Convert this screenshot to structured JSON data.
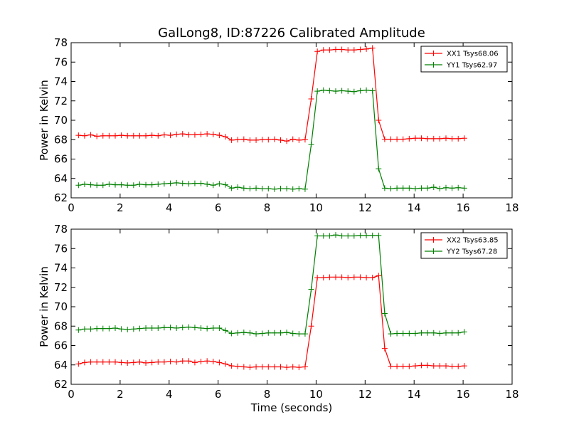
{
  "figure": {
    "title": "GalLong8, ID:87226 Calibrated Amplitude"
  },
  "colors": {
    "xx": "#ff0000",
    "yy": "#008000",
    "axes": "#000000",
    "background": "#ffffff"
  },
  "chart_data": [
    {
      "type": "line",
      "title": "GalLong8, ID:87226 Calibrated Amplitude",
      "xlabel": "",
      "ylabel": "Power in Kelvin",
      "xlim": [
        0,
        18
      ],
      "ylim": [
        62,
        78
      ],
      "xticks": [
        "0",
        "2",
        "4",
        "6",
        "8",
        "10",
        "12",
        "14",
        "16",
        "18"
      ],
      "yticks": [
        "62",
        "64",
        "66",
        "68",
        "70",
        "72",
        "74",
        "76",
        "78"
      ],
      "grid": false,
      "legend_position": "top-right",
      "x": [
        0.3,
        0.55,
        0.8,
        1.05,
        1.3,
        1.55,
        1.8,
        2.05,
        2.3,
        2.55,
        2.8,
        3.05,
        3.3,
        3.55,
        3.8,
        4.05,
        4.3,
        4.55,
        4.8,
        5.05,
        5.3,
        5.55,
        5.8,
        6.05,
        6.3,
        6.55,
        6.8,
        7.05,
        7.3,
        7.55,
        7.8,
        8.05,
        8.3,
        8.55,
        8.8,
        9.05,
        9.3,
        9.55,
        9.8,
        10.05,
        10.3,
        10.55,
        10.8,
        11.05,
        11.3,
        11.55,
        11.8,
        12.05,
        12.3,
        12.55,
        12.8,
        13.05,
        13.3,
        13.55,
        13.8,
        14.05,
        14.3,
        14.55,
        14.8,
        15.05,
        15.3,
        15.55,
        15.8,
        16.05
      ],
      "series": [
        {
          "name": "XX1 Tsys68.06",
          "color": "#ff0000",
          "values": [
            68.45,
            68.4,
            68.5,
            68.35,
            68.4,
            68.4,
            68.4,
            68.45,
            68.4,
            68.4,
            68.4,
            68.4,
            68.45,
            68.4,
            68.5,
            68.45,
            68.55,
            68.6,
            68.5,
            68.5,
            68.55,
            68.6,
            68.55,
            68.45,
            68.3,
            67.95,
            68.0,
            68.05,
            67.95,
            67.95,
            68.0,
            68.0,
            68.05,
            67.95,
            67.85,
            68.05,
            67.95,
            68.0,
            72.2,
            77.1,
            77.25,
            77.25,
            77.3,
            77.3,
            77.25,
            77.25,
            77.3,
            77.35,
            77.45,
            70.0,
            68.05,
            68.05,
            68.05,
            68.05,
            68.1,
            68.15,
            68.15,
            68.1,
            68.1,
            68.1,
            68.15,
            68.1,
            68.1,
            68.15
          ]
        },
        {
          "name": "YY1 Tsys62.97",
          "color": "#008000",
          "values": [
            63.3,
            63.4,
            63.35,
            63.3,
            63.3,
            63.4,
            63.35,
            63.35,
            63.3,
            63.3,
            63.4,
            63.35,
            63.35,
            63.4,
            63.45,
            63.5,
            63.55,
            63.5,
            63.45,
            63.5,
            63.5,
            63.4,
            63.3,
            63.45,
            63.35,
            63.0,
            63.1,
            63.0,
            62.95,
            63.0,
            62.95,
            62.95,
            62.9,
            62.95,
            62.95,
            62.9,
            62.95,
            62.9,
            67.5,
            73.0,
            73.1,
            73.05,
            73.0,
            73.05,
            73.0,
            72.95,
            73.05,
            73.1,
            73.05,
            65.0,
            63.0,
            62.95,
            63.0,
            63.0,
            63.0,
            62.95,
            63.0,
            63.0,
            63.1,
            62.95,
            63.05,
            63.0,
            63.05,
            63.0
          ]
        }
      ]
    },
    {
      "type": "line",
      "title": "",
      "xlabel": "Time (seconds)",
      "ylabel": "Power in Kelvin",
      "xlim": [
        0,
        18
      ],
      "ylim": [
        62,
        78
      ],
      "xticks": [
        "0",
        "2",
        "4",
        "6",
        "8",
        "10",
        "12",
        "14",
        "16",
        "18"
      ],
      "yticks": [
        "62",
        "64",
        "66",
        "68",
        "70",
        "72",
        "74",
        "76",
        "78"
      ],
      "grid": false,
      "legend_position": "top-right",
      "x": [
        0.3,
        0.55,
        0.8,
        1.05,
        1.3,
        1.55,
        1.8,
        2.05,
        2.3,
        2.55,
        2.8,
        3.05,
        3.3,
        3.55,
        3.8,
        4.05,
        4.3,
        4.55,
        4.8,
        5.05,
        5.3,
        5.55,
        5.8,
        6.05,
        6.3,
        6.55,
        6.8,
        7.05,
        7.3,
        7.55,
        7.8,
        8.05,
        8.3,
        8.55,
        8.8,
        9.05,
        9.3,
        9.55,
        9.8,
        10.05,
        10.3,
        10.55,
        10.8,
        11.05,
        11.3,
        11.55,
        11.8,
        12.05,
        12.3,
        12.55,
        12.8,
        13.05,
        13.3,
        13.55,
        13.8,
        14.05,
        14.3,
        14.55,
        14.8,
        15.05,
        15.3,
        15.55,
        15.8,
        16.05
      ],
      "series": [
        {
          "name": "XX2 Tsys63.85",
          "color": "#ff0000",
          "values": [
            64.1,
            64.25,
            64.3,
            64.3,
            64.3,
            64.3,
            64.3,
            64.25,
            64.2,
            64.25,
            64.3,
            64.2,
            64.25,
            64.3,
            64.3,
            64.35,
            64.3,
            64.4,
            64.4,
            64.25,
            64.35,
            64.4,
            64.35,
            64.25,
            64.1,
            63.9,
            63.85,
            63.8,
            63.75,
            63.8,
            63.8,
            63.8,
            63.8,
            63.8,
            63.75,
            63.8,
            63.75,
            63.8,
            68.0,
            73.0,
            73.0,
            73.05,
            73.05,
            73.05,
            73.0,
            73.05,
            73.05,
            73.0,
            73.0,
            73.2,
            65.7,
            63.85,
            63.85,
            63.85,
            63.85,
            63.9,
            63.95,
            63.95,
            63.9,
            63.9,
            63.9,
            63.85,
            63.85,
            63.9
          ]
        },
        {
          "name": "YY2 Tsys67.28",
          "color": "#008000",
          "values": [
            67.6,
            67.7,
            67.7,
            67.75,
            67.75,
            67.75,
            67.8,
            67.7,
            67.65,
            67.7,
            67.75,
            67.8,
            67.8,
            67.8,
            67.85,
            67.85,
            67.8,
            67.85,
            67.9,
            67.85,
            67.8,
            67.75,
            67.8,
            67.8,
            67.55,
            67.25,
            67.3,
            67.35,
            67.3,
            67.2,
            67.25,
            67.3,
            67.3,
            67.3,
            67.35,
            67.25,
            67.2,
            67.2,
            71.8,
            77.3,
            77.3,
            77.3,
            77.4,
            77.3,
            77.3,
            77.3,
            77.35,
            77.35,
            77.35,
            77.35,
            69.3,
            67.2,
            67.25,
            67.25,
            67.25,
            67.25,
            67.3,
            67.3,
            67.3,
            67.25,
            67.3,
            67.3,
            67.3,
            67.4
          ]
        }
      ]
    }
  ]
}
